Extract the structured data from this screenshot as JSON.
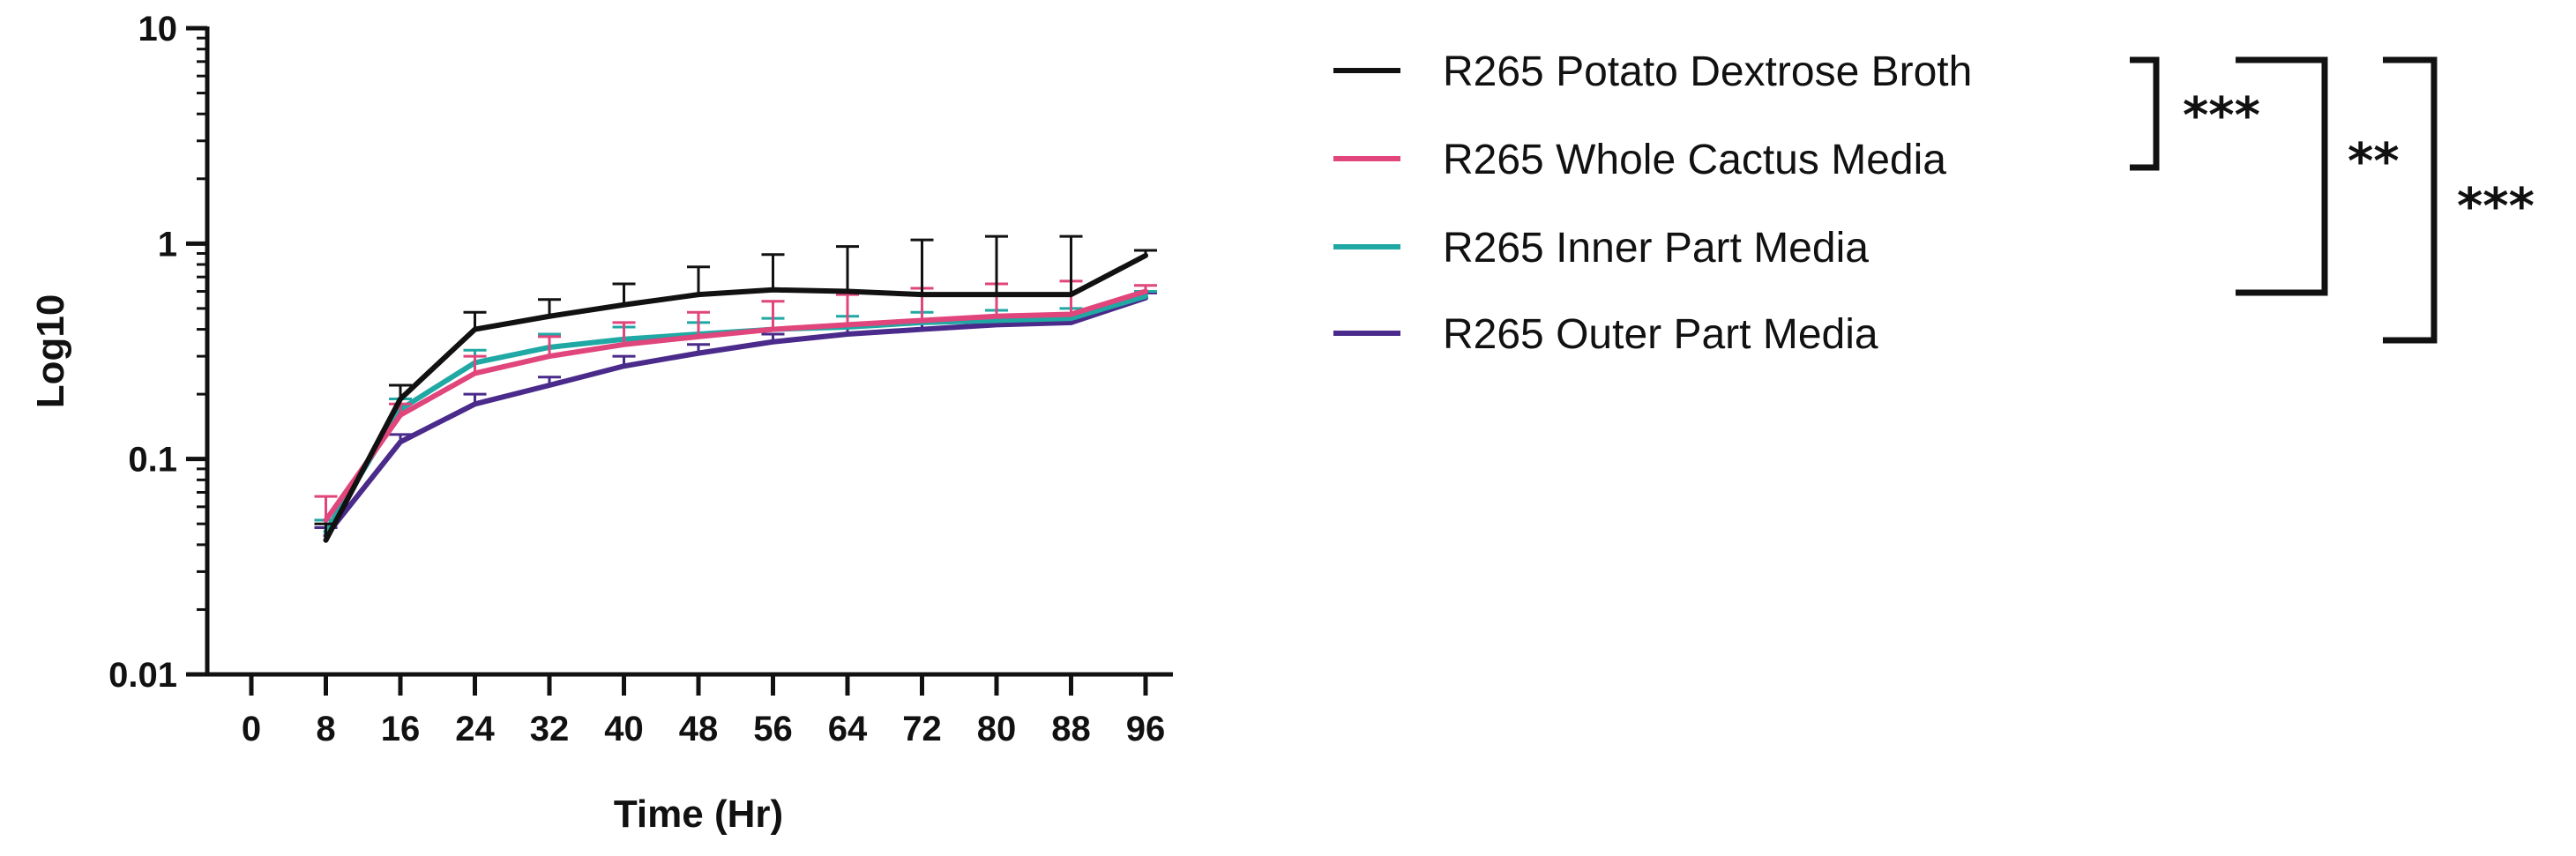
{
  "chart_data": {
    "type": "line",
    "title": "",
    "xlabel": "Time (Hr)",
    "ylabel": "Log10",
    "yscale": "log",
    "ylim": [
      0.01,
      10
    ],
    "xlim": [
      0,
      96
    ],
    "x_ticks": [
      "0",
      "8",
      "16",
      "24",
      "32",
      "40",
      "48",
      "56",
      "64",
      "72",
      "80",
      "88",
      "96"
    ],
    "y_ticks": [
      "0.01",
      "0.1",
      "1",
      "10"
    ],
    "x": [
      8,
      16,
      24,
      32,
      40,
      48,
      56,
      64,
      72,
      80,
      88,
      96
    ],
    "series": [
      {
        "name": "R265 Potato Dextrose Broth",
        "color": "#111111",
        "values": [
          0.042,
          0.19,
          0.4,
          0.46,
          0.52,
          0.58,
          0.61,
          0.6,
          0.58,
          0.58,
          0.58,
          0.88
        ],
        "error": [
          0.008,
          0.03,
          0.08,
          0.09,
          0.13,
          0.2,
          0.28,
          0.37,
          0.46,
          0.5,
          0.5,
          0.05
        ]
      },
      {
        "name": "R265 Whole Cactus Media",
        "color": "#e0457b",
        "values": [
          0.052,
          0.16,
          0.25,
          0.3,
          0.34,
          0.37,
          0.4,
          0.42,
          0.44,
          0.46,
          0.47,
          0.6
        ],
        "error": [
          0.015,
          0.02,
          0.05,
          0.07,
          0.09,
          0.11,
          0.14,
          0.16,
          0.18,
          0.19,
          0.2,
          0.04
        ]
      },
      {
        "name": "R265 Inner Part Media",
        "color": "#20a8a4",
        "values": [
          0.046,
          0.17,
          0.28,
          0.33,
          0.36,
          0.38,
          0.4,
          0.41,
          0.43,
          0.44,
          0.45,
          0.57
        ],
        "error": [
          0.006,
          0.02,
          0.04,
          0.05,
          0.05,
          0.05,
          0.05,
          0.05,
          0.05,
          0.05,
          0.05,
          0.03
        ]
      },
      {
        "name": "R265 Outer Part Media",
        "color": "#4a2a8a",
        "values": [
          0.044,
          0.12,
          0.18,
          0.22,
          0.27,
          0.31,
          0.35,
          0.38,
          0.4,
          0.42,
          0.43,
          0.56
        ],
        "error": [
          0.004,
          0.01,
          0.02,
          0.02,
          0.03,
          0.03,
          0.03,
          0.03,
          0.03,
          0.03,
          0.03,
          0.03
        ]
      }
    ],
    "legend_position": "right",
    "significance": [
      {
        "label": "***",
        "from": 0,
        "to": 1
      },
      {
        "label": "**",
        "from": 0,
        "to": 2
      },
      {
        "label": "***",
        "from": 0,
        "to": 3
      }
    ]
  }
}
